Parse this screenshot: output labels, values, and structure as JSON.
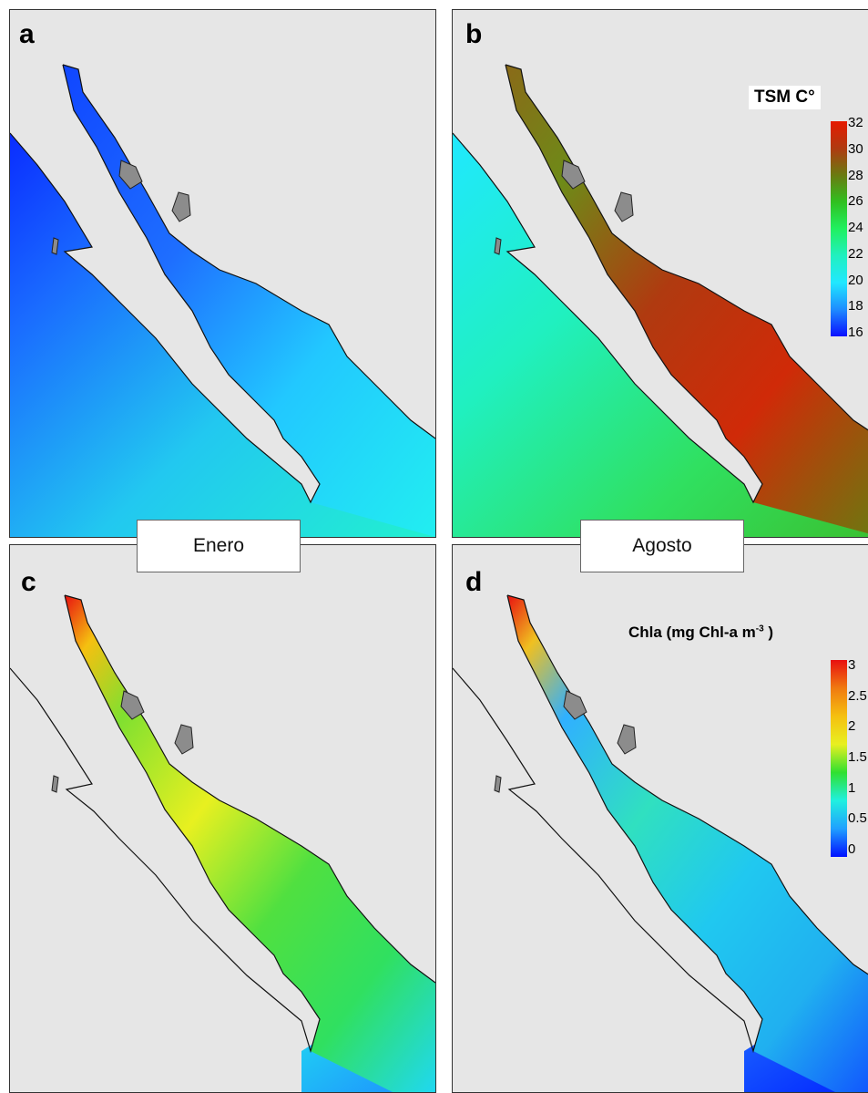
{
  "panels": [
    {
      "letter": "a",
      "variable": "sst",
      "month": "Enero"
    },
    {
      "letter": "b",
      "variable": "sst",
      "month": "Agosto"
    },
    {
      "letter": "c",
      "variable": "chla",
      "month": "Enero"
    },
    {
      "letter": "d",
      "variable": "chla",
      "month": "Agosto"
    }
  ],
  "month_labels": [
    "Enero",
    "Agosto"
  ],
  "legend_sst": {
    "title": "TSM C°",
    "ticks": [
      "32",
      "30",
      "28",
      "26",
      "24",
      "22",
      "20",
      "18",
      "16"
    ],
    "colors": [
      "#e61a00",
      "#b03a10",
      "#6a7a10",
      "#30c020",
      "#20f060",
      "#20f0c0",
      "#20e8ff",
      "#1e8cff",
      "#0a10ff"
    ]
  },
  "legend_chla": {
    "title": "Chla (mg Chl-a m",
    "title_exponent": "-3",
    "title_suffix": " )",
    "ticks": [
      "3",
      "2.5",
      "2",
      "1.5",
      "1",
      "0.5",
      "0"
    ],
    "colors": [
      "#e81010",
      "#f07a10",
      "#f5c010",
      "#e8f020",
      "#30e030",
      "#20f0e0",
      "#20a0ff",
      "#0010ff"
    ]
  },
  "colors": {
    "land": "#e6e6e6",
    "island": "#8c8c8c",
    "coast": "#111111"
  }
}
